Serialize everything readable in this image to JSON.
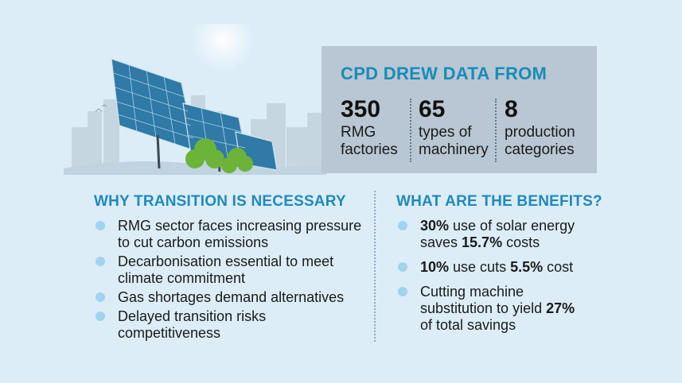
{
  "stats": {
    "title": "CPD DREW DATA FROM",
    "items": [
      {
        "number": "350",
        "label_line1": "RMG",
        "label_line2": "factories"
      },
      {
        "number": "65",
        "label_line1": "types of",
        "label_line2": "machinery"
      },
      {
        "number": "8",
        "label_line1": "production",
        "label_line2": "categories"
      }
    ]
  },
  "left": {
    "title": "WHY TRANSITION IS NECESSARY",
    "items": [
      {
        "line1": "RMG sector faces increasing pressure",
        "line2": "to cut carbon emissions"
      },
      {
        "line1": "Decarbonisation essential to meet",
        "line2": "climate commitment"
      },
      {
        "line1": "Gas shortages demand alternatives",
        "line2": ""
      },
      {
        "line1": "Delayed transition risks",
        "line2": "competitiveness"
      }
    ]
  },
  "right": {
    "title": "WHAT ARE THE BENEFITS?",
    "items": [
      {
        "b1": "30%",
        "t1": " use of solar energy",
        "t2": "saves ",
        "b2": "15.7%",
        "t3": " costs"
      },
      {
        "b1": "10%",
        "t1": " use cuts ",
        "b2": "5.5%",
        "t2": " cost"
      },
      {
        "t1": "Cutting machine",
        "t2": "substitution to yield ",
        "b1": "27%",
        "t3": "of total savings"
      }
    ]
  },
  "colors": {
    "background": "#dcedf8",
    "accent": "#1f89bd",
    "panel": "#b8c7d3",
    "bullet": "#9fd4ef"
  },
  "icons": [
    "solar-panel-illustration",
    "tree-icon",
    "city-skyline",
    "sun-glow"
  ]
}
